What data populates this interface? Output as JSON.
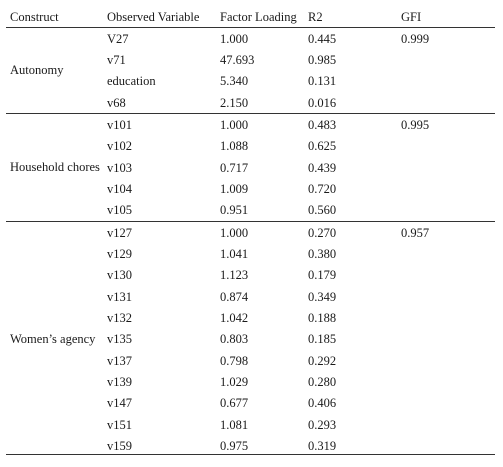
{
  "table": {
    "headers": [
      "Construct",
      "Observed Variable",
      "Factor Loading",
      "R2",
      "GFI"
    ],
    "groups": [
      {
        "construct": "Autonomy",
        "gfi": "0.999",
        "rows": [
          {
            "variable": "V27",
            "loading": "1.000",
            "r2": "0.445"
          },
          {
            "variable": "v71",
            "loading": "47.693",
            "r2": "0.985"
          },
          {
            "variable": "education",
            "loading": "5.340",
            "r2": "0.131"
          },
          {
            "variable": "v68",
            "loading": "2.150",
            "r2": "0.016"
          }
        ]
      },
      {
        "construct": "Household chores",
        "gfi": "0.995",
        "rows": [
          {
            "variable": "v101",
            "loading": "1.000",
            "r2": "0.483"
          },
          {
            "variable": "v102",
            "loading": "1.088",
            "r2": "0.625"
          },
          {
            "variable": "v103",
            "loading": "0.717",
            "r2": "0.439"
          },
          {
            "variable": "v104",
            "loading": "1.009",
            "r2": "0.720"
          },
          {
            "variable": "v105",
            "loading": "0.951",
            "r2": "0.560"
          }
        ]
      },
      {
        "construct": "Women’s agency",
        "gfi": "0.957",
        "rows": [
          {
            "variable": "v127",
            "loading": "1.000",
            "r2": "0.270"
          },
          {
            "variable": "v129",
            "loading": "1.041",
            "r2": "0.380"
          },
          {
            "variable": "v130",
            "loading": "1.123",
            "r2": "0.179"
          },
          {
            "variable": "v131",
            "loading": "0.874",
            "r2": "0.349"
          },
          {
            "variable": "v132",
            "loading": "1.042",
            "r2": "0.188"
          },
          {
            "variable": "v135",
            "loading": "0.803",
            "r2": "0.185"
          },
          {
            "variable": "v137",
            "loading": "0.798",
            "r2": "0.292"
          },
          {
            "variable": "v139",
            "loading": "1.029",
            "r2": "0.280"
          },
          {
            "variable": "v147",
            "loading": "0.677",
            "r2": "0.406"
          },
          {
            "variable": "v151",
            "loading": "1.081",
            "r2": "0.293"
          },
          {
            "variable": "v159",
            "loading": "0.975",
            "r2": "0.319"
          }
        ]
      }
    ]
  },
  "footer": {
    "caption_fragment": "       . . . . . . . . . . . . ."
  }
}
